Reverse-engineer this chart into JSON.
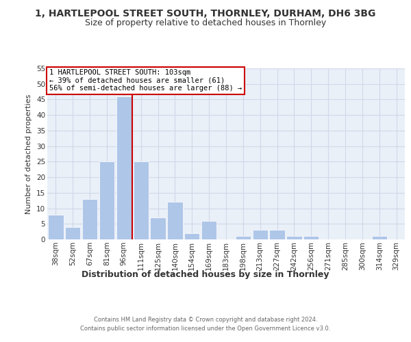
{
  "title_line1": "1, HARTLEPOOL STREET SOUTH, THORNLEY, DURHAM, DH6 3BG",
  "title_line2": "Size of property relative to detached houses in Thornley",
  "xlabel": "Distribution of detached houses by size in Thornley",
  "ylabel": "Number of detached properties",
  "footer_line1": "Contains HM Land Registry data © Crown copyright and database right 2024.",
  "footer_line2": "Contains public sector information licensed under the Open Government Licence v3.0.",
  "categories": [
    "38sqm",
    "52sqm",
    "67sqm",
    "81sqm",
    "96sqm",
    "111sqm",
    "125sqm",
    "140sqm",
    "154sqm",
    "169sqm",
    "183sqm",
    "198sqm",
    "213sqm",
    "227sqm",
    "242sqm",
    "256sqm",
    "271sqm",
    "285sqm",
    "300sqm",
    "314sqm",
    "329sqm"
  ],
  "values": [
    8,
    4,
    13,
    25,
    46,
    25,
    7,
    12,
    2,
    6,
    0,
    1,
    3,
    3,
    1,
    1,
    0,
    0,
    0,
    1,
    0
  ],
  "bar_color": "#aec6e8",
  "bar_edge_color": "#ffffff",
  "grid_color": "#d0d8e8",
  "background_color": "#eaf0f8",
  "red_line_x": 4.5,
  "red_line_color": "#cc0000",
  "annotation_text": "1 HARTLEPOOL STREET SOUTH: 103sqm\n← 39% of detached houses are smaller (61)\n56% of semi-detached houses are larger (88) →",
  "annotation_box_color": "#ffffff",
  "annotation_box_edge": "#cc0000",
  "ylim": [
    0,
    55
  ],
  "yticks": [
    0,
    5,
    10,
    15,
    20,
    25,
    30,
    35,
    40,
    45,
    50,
    55
  ],
  "title_fontsize": 10,
  "subtitle_fontsize": 9,
  "xlabel_fontsize": 9,
  "ylabel_fontsize": 8,
  "tick_fontsize": 7.5,
  "annotation_fontsize": 7.5,
  "footer_fontsize": 6.0
}
